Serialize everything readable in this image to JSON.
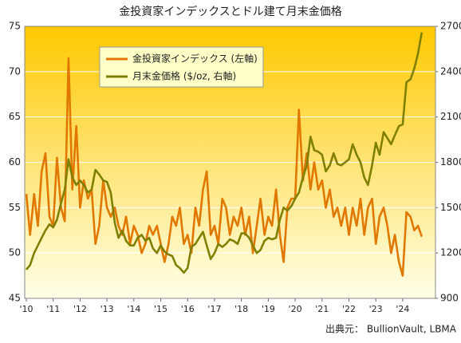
{
  "chart_data": {
    "type": "line",
    "title": "金投資家インデックスとドル建て月末金価格",
    "source": "出典元： BullionVault, LBMA",
    "x": [
      2010,
      2010.14,
      2010.29,
      2010.43,
      2010.57,
      2010.71,
      2010.86,
      2011,
      2011.14,
      2011.29,
      2011.43,
      2011.57,
      2011.71,
      2011.86,
      2012,
      2012.14,
      2012.29,
      2012.43,
      2012.57,
      2012.71,
      2012.86,
      2013,
      2013.14,
      2013.29,
      2013.43,
      2013.57,
      2013.71,
      2013.86,
      2014,
      2014.14,
      2014.29,
      2014.43,
      2014.57,
      2014.71,
      2014.86,
      2015,
      2015.14,
      2015.29,
      2015.43,
      2015.57,
      2015.71,
      2015.86,
      2016,
      2016.14,
      2016.29,
      2016.43,
      2016.57,
      2016.71,
      2016.86,
      2017,
      2017.14,
      2017.29,
      2017.43,
      2017.57,
      2017.71,
      2017.86,
      2018,
      2018.14,
      2018.29,
      2018.43,
      2018.57,
      2018.71,
      2018.86,
      2019,
      2019.14,
      2019.29,
      2019.43,
      2019.57,
      2019.71,
      2019.86,
      2020,
      2020.14,
      2020.29,
      2020.43,
      2020.57,
      2020.71,
      2020.86,
      2021,
      2021.14,
      2021.29,
      2021.43,
      2021.57,
      2021.71,
      2021.86,
      2022,
      2022.14,
      2022.29,
      2022.43,
      2022.57,
      2022.71,
      2022.86,
      2023,
      2023.14,
      2023.29,
      2023.43,
      2023.57,
      2023.71,
      2023.86,
      2024,
      2024.14,
      2024.29,
      2024.43,
      2024.57,
      2024.71
    ],
    "xlim": [
      2009.94,
      2025.22
    ],
    "xticks": [
      {
        "value": 2010,
        "label": "'10"
      },
      {
        "value": 2011,
        "label": "'11"
      },
      {
        "value": 2012,
        "label": "'12"
      },
      {
        "value": 2013,
        "label": "'13"
      },
      {
        "value": 2014,
        "label": "'14"
      },
      {
        "value": 2015,
        "label": "'15"
      },
      {
        "value": 2016,
        "label": "'16"
      },
      {
        "value": 2017,
        "label": "'17"
      },
      {
        "value": 2018,
        "label": "'18"
      },
      {
        "value": 2019,
        "label": "'19"
      },
      {
        "value": 2020,
        "label": "'20"
      },
      {
        "value": 2021,
        "label": "'21"
      },
      {
        "value": 2022,
        "label": "'22"
      },
      {
        "value": 2023,
        "label": "'23"
      },
      {
        "value": 2024,
        "label": "'24"
      }
    ],
    "ylim": [
      45,
      75
    ],
    "yticks": [
      45,
      50,
      55,
      60,
      65,
      70,
      75
    ],
    "y2lim": [
      900,
      2700
    ],
    "y2ticks": [
      900,
      1200,
      1500,
      1800,
      2100,
      2400,
      2700
    ],
    "grid": true,
    "series": [
      {
        "name": "金投資家インデックス (左軸)",
        "color": "#e07800",
        "values": [
          56.5,
          52,
          56.5,
          53,
          59,
          61,
          54,
          53,
          60.5,
          55,
          53.5,
          71.5,
          57,
          64,
          55,
          58,
          56,
          57,
          51,
          53,
          58,
          55,
          54,
          55,
          53,
          52,
          54,
          51,
          53,
          52,
          50,
          51,
          53,
          52,
          53,
          51,
          49,
          51,
          54,
          53,
          55,
          51,
          52,
          50,
          55,
          53,
          57,
          59,
          52,
          53,
          51,
          56,
          55,
          52,
          54,
          53,
          55,
          52,
          54,
          50,
          53,
          56,
          52,
          54,
          53,
          57,
          52,
          49,
          55,
          56,
          56,
          65.8,
          58,
          61,
          57,
          60,
          57,
          58,
          55,
          57,
          54,
          55,
          53,
          55,
          52,
          55,
          53,
          56,
          52,
          55,
          56,
          51,
          54,
          55,
          53,
          50,
          52,
          49,
          47.5,
          54.5,
          54,
          52.5,
          53,
          51.8
        ]
      },
      {
        "name": "月末金価格 ($/oz, 右軸)",
        "color": "#808000",
        "axis": "y2",
        "values": [
          1090,
          1120,
          1200,
          1250,
          1300,
          1350,
          1390,
          1370,
          1420,
          1530,
          1620,
          1820,
          1700,
          1650,
          1680,
          1650,
          1600,
          1620,
          1750,
          1720,
          1680,
          1670,
          1600,
          1400,
          1300,
          1350,
          1280,
          1250,
          1250,
          1300,
          1320,
          1280,
          1300,
          1230,
          1200,
          1250,
          1210,
          1190,
          1180,
          1120,
          1100,
          1070,
          1100,
          1240,
          1260,
          1300,
          1340,
          1250,
          1160,
          1200,
          1260,
          1240,
          1260,
          1290,
          1280,
          1260,
          1330,
          1330,
          1300,
          1250,
          1200,
          1220,
          1280,
          1300,
          1290,
          1300,
          1420,
          1500,
          1480,
          1510,
          1560,
          1600,
          1700,
          1780,
          1970,
          1880,
          1870,
          1850,
          1740,
          1780,
          1860,
          1790,
          1780,
          1800,
          1820,
          1920,
          1850,
          1800,
          1700,
          1650,
          1780,
          1930,
          1850,
          2000,
          1960,
          1920,
          1980,
          2040,
          2050,
          2330,
          2350,
          2420,
          2520,
          2660
        ]
      }
    ]
  }
}
